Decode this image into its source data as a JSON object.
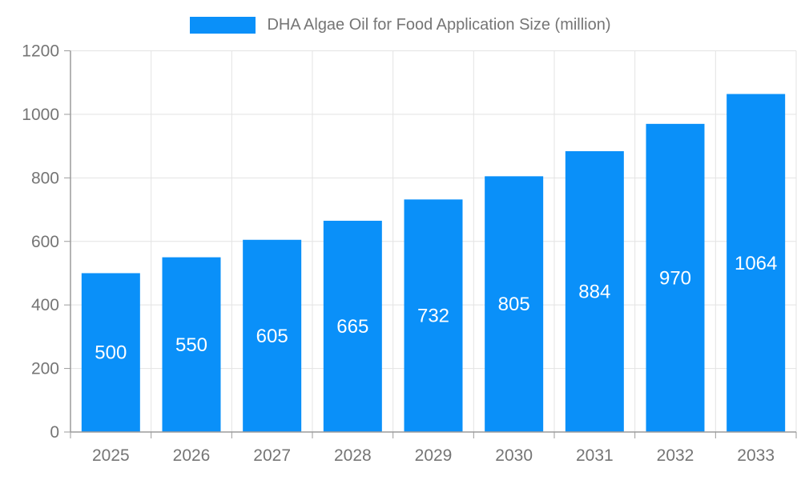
{
  "chart_data": {
    "type": "bar",
    "title": "DHA Algae Oil for Food Application Size (million)",
    "categories": [
      "2025",
      "2026",
      "2027",
      "2028",
      "2029",
      "2030",
      "2031",
      "2032",
      "2033"
    ],
    "values": [
      500,
      550,
      605,
      665,
      732,
      805,
      884,
      970,
      1064
    ],
    "bar_value_labels": [
      "500",
      "550",
      "605",
      "665",
      "732",
      "805",
      "884",
      "970",
      "1064"
    ],
    "xlabel": "",
    "ylabel": "",
    "ylim": [
      0,
      1200
    ],
    "yticks": [
      0,
      200,
      400,
      600,
      800,
      1000,
      1200
    ],
    "grid": true,
    "legend_position": "top",
    "colors": {
      "bar": "#0a90f9",
      "bar_label_text": "#ffffff",
      "axis_line": "#9b9b9b",
      "gridline": "#e3e3e3",
      "tick_text": "#757575",
      "title_text": "#757575",
      "background": "#ffffff"
    }
  }
}
